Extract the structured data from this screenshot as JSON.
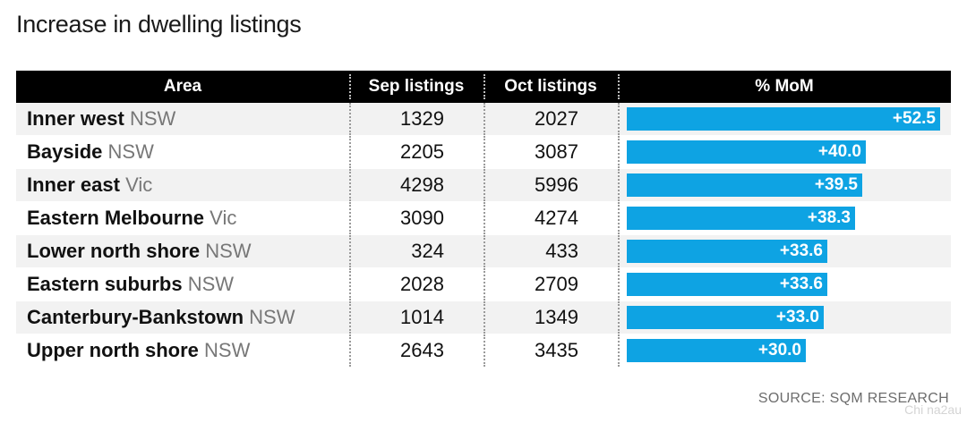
{
  "title": "Increase in dwelling listings",
  "columns": {
    "area": "Area",
    "sep": "Sep listings",
    "oct": "Oct listings",
    "mom": "% MoM"
  },
  "source": "SOURCE: SQM RESEARCH",
  "watermark": "Chi na2au",
  "colors": {
    "bar": "#0ea3e3",
    "header_bg": "#000000",
    "row_shade": "#f2f2f2",
    "state_text": "#777777"
  },
  "chart_data": {
    "type": "table",
    "columns": [
      "Area",
      "Sep listings",
      "Oct listings",
      "% MoM"
    ],
    "rows": [
      {
        "area": "Inner west",
        "state": "NSW",
        "sep": "1329",
        "oct": "2027",
        "mom": 52.5,
        "mom_label": "+52.5"
      },
      {
        "area": "Bayside",
        "state": "NSW",
        "sep": "2205",
        "oct": "3087",
        "mom": 40.0,
        "mom_label": "+40.0"
      },
      {
        "area": "Inner east",
        "state": "Vic",
        "sep": "4298",
        "oct": "5996",
        "mom": 39.5,
        "mom_label": "+39.5"
      },
      {
        "area": "Eastern Melbourne",
        "state": "Vic",
        "sep": "3090",
        "oct": "4274",
        "mom": 38.3,
        "mom_label": "+38.3"
      },
      {
        "area": "Lower north shore",
        "state": "NSW",
        "sep": "324",
        "oct": "433",
        "mom": 33.6,
        "mom_label": "+33.6"
      },
      {
        "area": "Eastern suburbs",
        "state": "NSW",
        "sep": "2028",
        "oct": "2709",
        "mom": 33.6,
        "mom_label": "+33.6"
      },
      {
        "area": "Canterbury-Bankstown",
        "state": "NSW",
        "sep": "1014",
        "oct": "1349",
        "mom": 33.0,
        "mom_label": "+33.0"
      },
      {
        "area": "Upper north shore",
        "state": "NSW",
        "sep": "2643",
        "oct": "3435",
        "mom": 30.0,
        "mom_label": "+30.0"
      }
    ],
    "bar_max": 52.5
  }
}
